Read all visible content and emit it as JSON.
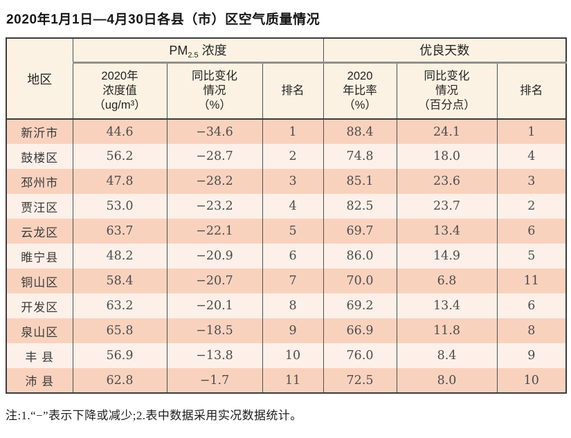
{
  "page": {
    "title": "2020年1月1日—4月30日各县（市）区空气质量情况",
    "note": "注:1.“−”表示下降或减少;2.表中数据采用实况数据统计。"
  },
  "colors": {
    "header_bg": "#fcf2e3",
    "row_odd_bg": "#f9d2be",
    "row_even_bg": "#fcf0e9",
    "border_dark": "#3c3c3c",
    "group_underline": "#8f8f8f"
  },
  "table": {
    "corner_header": "地区",
    "group_pm": {
      "prefix": "PM",
      "sub": "2.5",
      "suffix": " 浓度"
    },
    "group_good": "优良天数",
    "sub_pm_value": {
      "l1": "2020年",
      "l2": "浓度值",
      "l3": "（ug/m³）"
    },
    "sub_pm_change": {
      "l1": "同比变化",
      "l2": "情况",
      "l3": "（%）"
    },
    "sub_pm_rank": "排名",
    "sub_good_rate": {
      "l1": "2020",
      "l2": "年比率",
      "l3": "（%）"
    },
    "sub_good_change": {
      "l1": "同比变化",
      "l2": "情况",
      "l3": "（百分点）"
    },
    "sub_good_rank": "排名",
    "rows": [
      {
        "region": "新沂市",
        "pm": "44.6",
        "pm_change": "−34.6",
        "pm_rank": "1",
        "rate": "88.4",
        "rate_change": "24.1",
        "rate_rank": "1"
      },
      {
        "region": "鼓楼区",
        "pm": "56.2",
        "pm_change": "−28.7",
        "pm_rank": "2",
        "rate": "74.8",
        "rate_change": "18.0",
        "rate_rank": "4"
      },
      {
        "region": "邳州市",
        "pm": "47.8",
        "pm_change": "−28.2",
        "pm_rank": "3",
        "rate": "85.1",
        "rate_change": "23.6",
        "rate_rank": "3"
      },
      {
        "region": "贾汪区",
        "pm": "53.0",
        "pm_change": "−23.2",
        "pm_rank": "4",
        "rate": "82.5",
        "rate_change": "23.7",
        "rate_rank": "2"
      },
      {
        "region": "云龙区",
        "pm": "63.7",
        "pm_change": "−22.1",
        "pm_rank": "5",
        "rate": "69.7",
        "rate_change": "13.4",
        "rate_rank": "6"
      },
      {
        "region": "睢宁县",
        "pm": "48.2",
        "pm_change": "−20.9",
        "pm_rank": "6",
        "rate": "86.0",
        "rate_change": "14.9",
        "rate_rank": "5"
      },
      {
        "region": "铜山区",
        "pm": "58.4",
        "pm_change": "−20.7",
        "pm_rank": "7",
        "rate": "70.0",
        "rate_change": "6.8",
        "rate_rank": "11"
      },
      {
        "region": "开发区",
        "pm": "63.2",
        "pm_change": "−20.1",
        "pm_rank": "8",
        "rate": "69.2",
        "rate_change": "13.4",
        "rate_rank": "6"
      },
      {
        "region": "泉山区",
        "pm": "65.8",
        "pm_change": "−18.5",
        "pm_rank": "9",
        "rate": "66.9",
        "rate_change": "11.8",
        "rate_rank": "8"
      },
      {
        "region": "丰 县",
        "pm": "56.9",
        "pm_change": "−13.8",
        "pm_rank": "10",
        "rate": "76.0",
        "rate_change": "8.4",
        "rate_rank": "9"
      },
      {
        "region": "沛 县",
        "pm": "62.8",
        "pm_change": "−1.7",
        "pm_rank": "11",
        "rate": "72.5",
        "rate_change": "8.0",
        "rate_rank": "10"
      }
    ]
  }
}
